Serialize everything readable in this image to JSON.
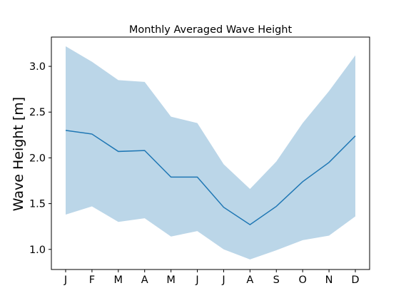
{
  "chart_data": {
    "type": "area",
    "title": "Monthly Averaged Wave Height",
    "xlabel": "",
    "ylabel": "Wave Height [m]",
    "categories": [
      "J",
      "F",
      "M",
      "A",
      "M",
      "J",
      "J",
      "A",
      "S",
      "O",
      "N",
      "D"
    ],
    "ylim": [
      0.78,
      3.32
    ],
    "yticks": [
      1.0,
      1.5,
      2.0,
      2.5,
      3.0
    ],
    "ytick_labels": [
      "1.0",
      "1.5",
      "2.0",
      "2.5",
      "3.0"
    ],
    "grid": false,
    "series": [
      {
        "kind": "line",
        "color": "#1f77b4",
        "values": [
          2.3,
          2.26,
          2.07,
          2.08,
          1.79,
          1.79,
          1.46,
          1.27,
          1.47,
          1.74,
          1.95,
          2.24
        ]
      },
      {
        "kind": "band",
        "color": "#1f77b4",
        "opacity": 0.3,
        "upper": [
          3.22,
          3.05,
          2.85,
          2.83,
          2.45,
          2.38,
          1.93,
          1.66,
          1.96,
          2.38,
          2.73,
          3.12
        ],
        "lower": [
          1.38,
          1.47,
          1.3,
          1.34,
          1.14,
          1.2,
          1.0,
          0.89,
          0.99,
          1.1,
          1.15,
          1.36
        ]
      }
    ]
  }
}
